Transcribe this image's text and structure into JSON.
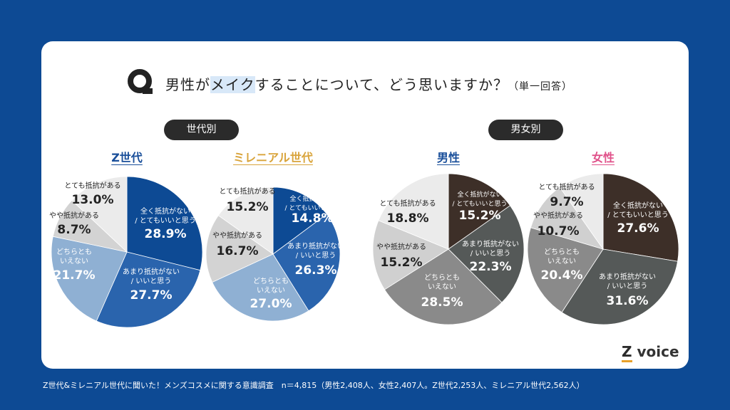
{
  "title": {
    "pre": "男性が",
    "highlight": "メイク",
    "post": "することについて、どう思いますか？",
    "sub": "（単一回答）",
    "icon": "q-icon"
  },
  "groups": {
    "generation": "世代別",
    "gender": "男女別"
  },
  "chart_data": [
    {
      "type": "pie",
      "title": "Z世代",
      "title_color": "#1a4f9a",
      "categories": [
        "全く抵抗がない\n/ とてもいいと思う",
        "あまり抵抗がない\n/ いいと思う",
        "どちらとも\nいえない",
        "やや抵抗がある",
        "とても抵抗がある"
      ],
      "values": [
        28.9,
        27.7,
        21.7,
        8.7,
        13.0
      ],
      "labels": [
        "28.9%",
        "27.7%",
        "21.7%",
        "8.7%",
        "13.0%"
      ],
      "colors": [
        "#0d4a94",
        "#2a64ad",
        "#8fb0d3",
        "#d3d3d3",
        "#ebebeb"
      ]
    },
    {
      "type": "pie",
      "title": "ミレニアル世代",
      "title_color": "#d9a43b",
      "categories": [
        "全く抵抗がない\n/ とてもいいと思う",
        "あまり抵抗がない\n/ いいと思う",
        "どちらとも\nいえない",
        "やや抵抗がある",
        "とても抵抗がある"
      ],
      "values": [
        14.8,
        26.3,
        27.0,
        16.7,
        15.2
      ],
      "labels": [
        "14.8%",
        "26.3%",
        "27.0%",
        "16.7%",
        "15.2%"
      ],
      "colors": [
        "#0d4a94",
        "#2a64ad",
        "#8fb0d3",
        "#d3d3d3",
        "#ebebeb"
      ]
    },
    {
      "type": "pie",
      "title": "男性",
      "title_color": "#1a4f9a",
      "categories": [
        "全く抵抗がない\n/ とてもいいと思う",
        "あまり抵抗がない\n/ いいと思う",
        "どちらとも\nいえない",
        "やや抵抗がある",
        "とても抵抗がある"
      ],
      "values": [
        15.2,
        22.3,
        28.5,
        15.2,
        18.8
      ],
      "labels": [
        "15.2%",
        "22.3%",
        "28.5%",
        "15.2%",
        "18.8%"
      ],
      "colors": [
        "#3d2f28",
        "#555958",
        "#8a8a8a",
        "#d0d0d0",
        "#ebebeb"
      ]
    },
    {
      "type": "pie",
      "title": "女性",
      "title_color": "#e0528a",
      "categories": [
        "全く抵抗がない\n/ とてもいいと思う",
        "あまり抵抗がない\n/ いいと思う",
        "どちらとも\nいえない",
        "やや抵抗がある",
        "とても抵抗がある"
      ],
      "values": [
        27.6,
        31.6,
        20.4,
        10.7,
        9.7
      ],
      "labels": [
        "27.6%",
        "31.6%",
        "20.4%",
        "10.7%",
        "9.7%"
      ],
      "colors": [
        "#3d2f28",
        "#555958",
        "#8a8a8a",
        "#d0d0d0",
        "#ebebeb"
      ]
    }
  ],
  "logo": {
    "z": "Z",
    "text": "voice"
  },
  "footer": "Z世代&ミレニアル世代に聞いた！メンズコスメに関する意識調査　n＝4,815（男性2,408人、女性2,407人。Z世代2,253人、ミレニアル世代2,562人）"
}
